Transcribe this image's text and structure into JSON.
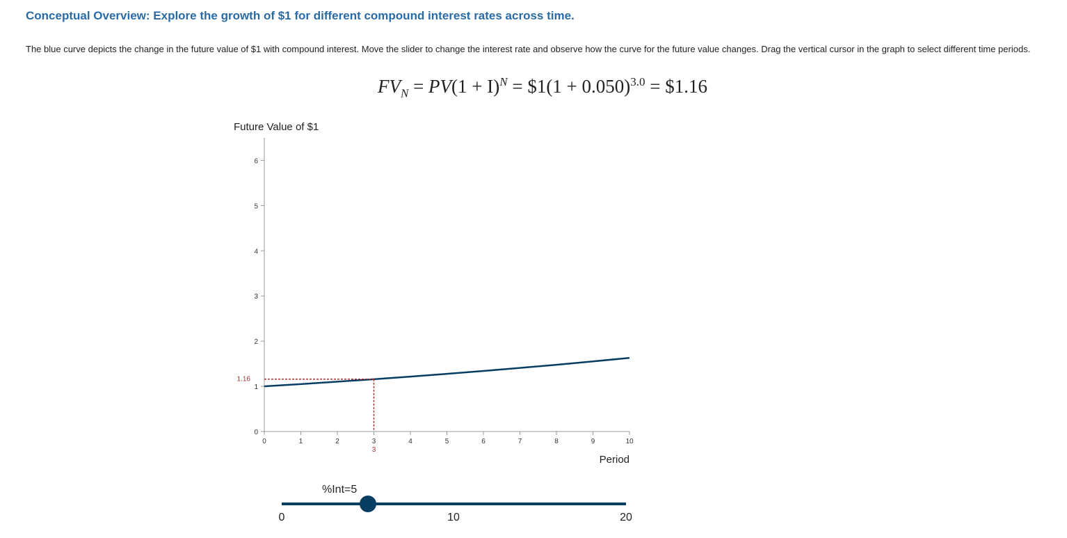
{
  "header": {
    "title": "Conceptual Overview: Explore the growth of $1 for different compound interest rates across time."
  },
  "description": "The blue curve depicts the change in the future value of $1 with compound interest. Move the slider to change the interest rate and observe how the curve for the future value changes. Drag the vertical cursor in the graph to select different time periods.",
  "formula": {
    "lhs_fv": "FV",
    "lhs_sub": "N",
    "eq1": " = ",
    "pv": "PV",
    "paren": "(1 + I)",
    "exp_n": "N",
    "eq2": " = $1(1 + 0.050)",
    "exp_val": "3.0",
    "eq3": " = $1.16"
  },
  "chart_data": {
    "type": "line",
    "title": "Future Value of $1",
    "xlabel": "Period",
    "ylabel": "Future Value of $1",
    "xlim": [
      0,
      10
    ],
    "ylim": [
      0,
      6.5
    ],
    "xticks": [
      0,
      1,
      2,
      3,
      4,
      5,
      6,
      7,
      8,
      9,
      10
    ],
    "yticks": [
      0,
      1,
      2,
      3,
      4,
      5,
      6
    ],
    "rate": 0.05,
    "series": [
      {
        "x": [
          0,
          1,
          2,
          3,
          4,
          5,
          6,
          7,
          8,
          9,
          10
        ],
        "values": [
          1.0,
          1.05,
          1.1025,
          1.1576,
          1.2155,
          1.2763,
          1.3401,
          1.4071,
          1.4775,
          1.5513,
          1.6289
        ],
        "color": "#063e63"
      }
    ],
    "cursor": {
      "x": 3,
      "x_label": "3",
      "y": 1.16,
      "y_label": "1.16",
      "color": "#a83232"
    }
  },
  "slider": {
    "label": "%Int=5",
    "value": 5,
    "min": 0,
    "max": 20,
    "ticks": [
      "0",
      "10",
      "20"
    ]
  }
}
